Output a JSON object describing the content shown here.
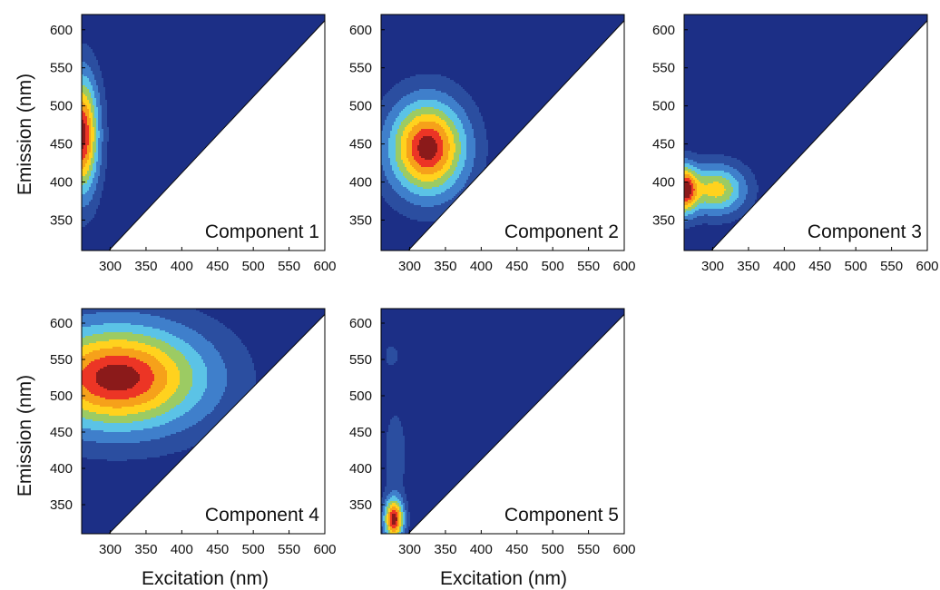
{
  "figure": {
    "ylabel": "Emission (nm)",
    "xlabel": "Excitation (nm)"
  },
  "colors": {
    "background": "#1c2f86",
    "levels": [
      "#2b4ea0",
      "#3f7fcb",
      "#5bc3e6",
      "#9ccb63",
      "#ffd21e",
      "#f6a11a",
      "#ec3525",
      "#8b1a1a"
    ],
    "contour_line": "#0a0a0a"
  },
  "chart_data": [
    {
      "type": "heatmap",
      "title": "Component 1",
      "xlabel": "",
      "ylabel": "Emission (nm)",
      "xlim": [
        260,
        600
      ],
      "ylim": [
        310,
        620
      ],
      "xticks": [
        300,
        350,
        400,
        450,
        500,
        550,
        600
      ],
      "yticks": [
        350,
        400,
        450,
        500,
        550,
        600
      ],
      "peaks": [
        {
          "x": 260,
          "y": 462,
          "sx": 22,
          "sy": 72,
          "amp": 1.0
        }
      ]
    },
    {
      "type": "heatmap",
      "title": "Component 2",
      "xlabel": "",
      "ylabel": "",
      "xlim": [
        260,
        600
      ],
      "ylim": [
        310,
        620
      ],
      "xticks": [
        300,
        350,
        400,
        450,
        500,
        550,
        600
      ],
      "yticks": [
        350,
        400,
        450,
        500,
        550,
        600
      ],
      "peaks": [
        {
          "x": 325,
          "y": 445,
          "sx": 50,
          "sy": 58,
          "amp": 1.0
        }
      ]
    },
    {
      "type": "heatmap",
      "title": "Component 3",
      "xlabel": "",
      "ylabel": "",
      "xlim": [
        260,
        600
      ],
      "ylim": [
        310,
        620
      ],
      "xticks": [
        300,
        350,
        400,
        450,
        500,
        550,
        600
      ],
      "yticks": [
        350,
        400,
        450,
        500,
        550,
        600
      ],
      "peaks": [
        {
          "x": 260,
          "y": 390,
          "sx": 18,
          "sy": 30,
          "amp": 0.92
        },
        {
          "x": 305,
          "y": 390,
          "sx": 38,
          "sy": 30,
          "amp": 0.62
        }
      ]
    },
    {
      "type": "heatmap",
      "title": "Component 4",
      "xlabel": "Excitation (nm)",
      "ylabel": "Emission (nm)",
      "xlim": [
        260,
        600
      ],
      "ylim": [
        310,
        620
      ],
      "xticks": [
        300,
        350,
        400,
        450,
        500,
        550,
        600
      ],
      "yticks": [
        350,
        400,
        450,
        500,
        550,
        600
      ],
      "peaks": [
        {
          "x": 310,
          "y": 525,
          "sx": 115,
          "sy": 68,
          "amp": 1.0
        }
      ]
    },
    {
      "type": "heatmap",
      "title": "Component 5",
      "xlabel": "Excitation (nm)",
      "ylabel": "",
      "xlim": [
        260,
        600
      ],
      "ylim": [
        310,
        620
      ],
      "xticks": [
        300,
        350,
        400,
        450,
        500,
        550,
        600
      ],
      "yticks": [
        350,
        400,
        450,
        500,
        550,
        600
      ],
      "peaks": [
        {
          "x": 278,
          "y": 330,
          "sx": 13,
          "sy": 27,
          "amp": 1.0
        },
        {
          "x": 280,
          "y": 420,
          "sx": 14,
          "sy": 55,
          "amp": 0.15
        },
        {
          "x": 275,
          "y": 555,
          "sx": 9,
          "sy": 13,
          "amp": 0.15
        }
      ]
    }
  ]
}
